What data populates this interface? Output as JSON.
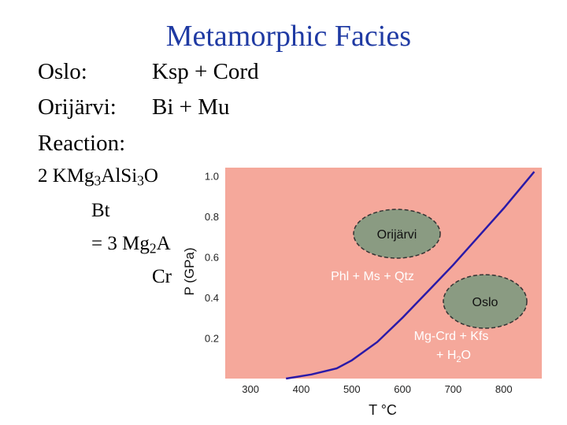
{
  "title": "Metamorphic Facies",
  "rows": [
    {
      "label": "Oslo:",
      "value": "Ksp + Cord"
    },
    {
      "label": "Orijärvi:",
      "value": "Bi + Mu"
    },
    {
      "label": "Reaction:",
      "value": ""
    }
  ],
  "reaction": {
    "line1_prefix": "2 KMg",
    "line1_sub1": "3",
    "line1_mid": "AlSi",
    "line1_sub2": "3",
    "line1_suffix": "O",
    "line1_mineral": "Bt",
    "line2_prefix": "= 3 Mg",
    "line2_sub": "2",
    "line2_suffix": "A",
    "line2_mineral": "Cr"
  },
  "chart_data": {
    "type": "line",
    "xlabel": "T °C",
    "ylabel": "P (GPa)",
    "x_ticks": [
      300,
      400,
      500,
      600,
      700,
      800
    ],
    "y_ticks": [
      "0.2",
      "0.4",
      "0.6",
      "0.8",
      "1.0"
    ],
    "xlim": [
      250,
      875
    ],
    "ylim": [
      0,
      1.04
    ],
    "series": [
      {
        "x": [
          370,
          420,
          470,
          500,
          550,
          600,
          650,
          700,
          750,
          800,
          860
        ],
        "y": [
          0.0,
          0.02,
          0.05,
          0.09,
          0.18,
          0.3,
          0.43,
          0.56,
          0.7,
          0.84,
          1.02
        ]
      }
    ],
    "fields": {
      "upper": "Phl + Ms + Qtz",
      "lower_line1": "Mg-Crd + Kfs",
      "lower_line2_prefix": "+ H",
      "lower_line2_sub": "2",
      "lower_line2_suffix": "O"
    },
    "localities": {
      "orijarvi": "Orijärvi",
      "oslo": "Oslo"
    },
    "colors": {
      "field_fill": "#f5a89b",
      "curve": "#2a1aa8",
      "ellipse_fill": "#8a9b82"
    }
  }
}
